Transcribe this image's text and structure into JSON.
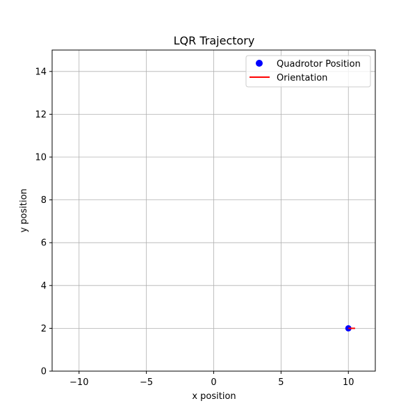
{
  "chart_data": {
    "type": "scatter",
    "title": "LQR Trajectory",
    "xlabel": "x position",
    "ylabel": "y position",
    "xlim": [
      -12,
      12
    ],
    "ylim": [
      0,
      15
    ],
    "xticks": [
      -10,
      -5,
      0,
      5,
      10
    ],
    "xtick_labels": [
      "−10",
      "−5",
      "0",
      "5",
      "10"
    ],
    "yticks": [
      0,
      2,
      4,
      6,
      8,
      10,
      12,
      14
    ],
    "ytick_labels": [
      "0",
      "2",
      "4",
      "6",
      "8",
      "10",
      "12",
      "14"
    ],
    "grid": true,
    "legend_position": "top-right",
    "series": [
      {
        "name": "Quadrotor Position",
        "kind": "marker",
        "color": "#0000ff",
        "points": [
          {
            "x": 10,
            "y": 2
          }
        ]
      },
      {
        "name": "Orientation",
        "kind": "line",
        "color": "#ff0000",
        "segments": [
          {
            "x0": 10,
            "y0": 2,
            "x1": 10.5,
            "y1": 2
          }
        ]
      }
    ]
  }
}
